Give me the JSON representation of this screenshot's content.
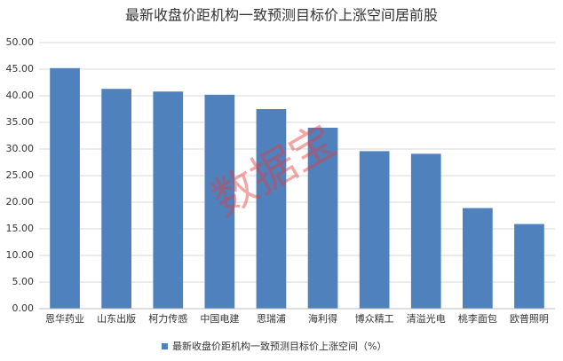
{
  "chart_data": {
    "type": "bar",
    "title": "最新收盘价距机构一致预测目标价上涨空间居前股",
    "categories": [
      "恩华药业",
      "山东出版",
      "柯力传感",
      "中国电建",
      "思瑞浦",
      "海利得",
      "博众精工",
      "清溢光电",
      "桃李面包",
      "欧普照明"
    ],
    "series": [
      {
        "name": "最新收盘价距机构一致预测目标价上涨空间（%）",
        "color": "#4f81bd",
        "values": [
          45.2,
          41.3,
          40.8,
          40.2,
          37.5,
          34.0,
          29.6,
          29.1,
          18.9,
          15.9
        ]
      }
    ],
    "ylim": [
      0,
      50
    ],
    "yticks": [
      {
        "value": 0,
        "label": "0.00"
      },
      {
        "value": 5,
        "label": "5.00"
      },
      {
        "value": 10,
        "label": "10.00"
      },
      {
        "value": 15,
        "label": "15.00"
      },
      {
        "value": 20,
        "label": "20.00"
      },
      {
        "value": 25,
        "label": "25.00"
      },
      {
        "value": 30,
        "label": "30.00"
      },
      {
        "value": 35,
        "label": "35.00"
      },
      {
        "value": 40,
        "label": "40.00"
      },
      {
        "value": 45,
        "label": "45.00"
      },
      {
        "value": 50,
        "label": "50.00"
      }
    ],
    "grid": true,
    "legend": "bottom",
    "watermark": "数据宝"
  }
}
